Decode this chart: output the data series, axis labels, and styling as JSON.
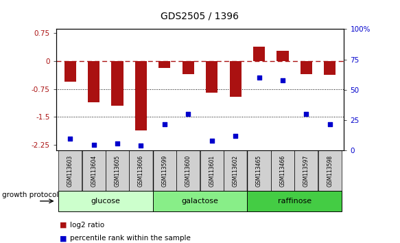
{
  "title": "GDS2505 / 1396",
  "samples": [
    "GSM113603",
    "GSM113604",
    "GSM113605",
    "GSM113606",
    "GSM113599",
    "GSM113600",
    "GSM113601",
    "GSM113602",
    "GSM113465",
    "GSM113466",
    "GSM113597",
    "GSM113598"
  ],
  "log2_ratio": [
    -0.55,
    -1.1,
    -1.2,
    -1.85,
    -0.18,
    -0.35,
    -0.85,
    -0.95,
    0.38,
    0.28,
    -0.35,
    -0.38
  ],
  "percentile_rank": [
    10,
    5,
    6,
    4,
    22,
    30,
    8,
    12,
    60,
    58,
    30,
    22
  ],
  "bar_color": "#aa1111",
  "dot_color": "#0000cc",
  "ylim_left": [
    -2.4,
    0.85
  ],
  "ylim_right": [
    0,
    100
  ],
  "yticks_left": [
    0.75,
    0,
    -0.75,
    -1.5,
    -2.25
  ],
  "yticks_right": [
    100,
    75,
    50,
    25,
    0
  ],
  "hline_y": 0,
  "dotted_lines": [
    -0.75,
    -1.5
  ],
  "groups": [
    {
      "label": "glucose",
      "start": 0,
      "end": 3,
      "color": "#ccffcc"
    },
    {
      "label": "galactose",
      "start": 4,
      "end": 7,
      "color": "#88ee88"
    },
    {
      "label": "raffinose",
      "start": 8,
      "end": 11,
      "color": "#44cc44"
    }
  ],
  "legend_items": [
    {
      "color": "#aa1111",
      "label": "log2 ratio"
    },
    {
      "color": "#0000cc",
      "label": "percentile rank within the sample"
    }
  ],
  "growth_protocol_label": "growth protocol",
  "background_color": "#ffffff"
}
